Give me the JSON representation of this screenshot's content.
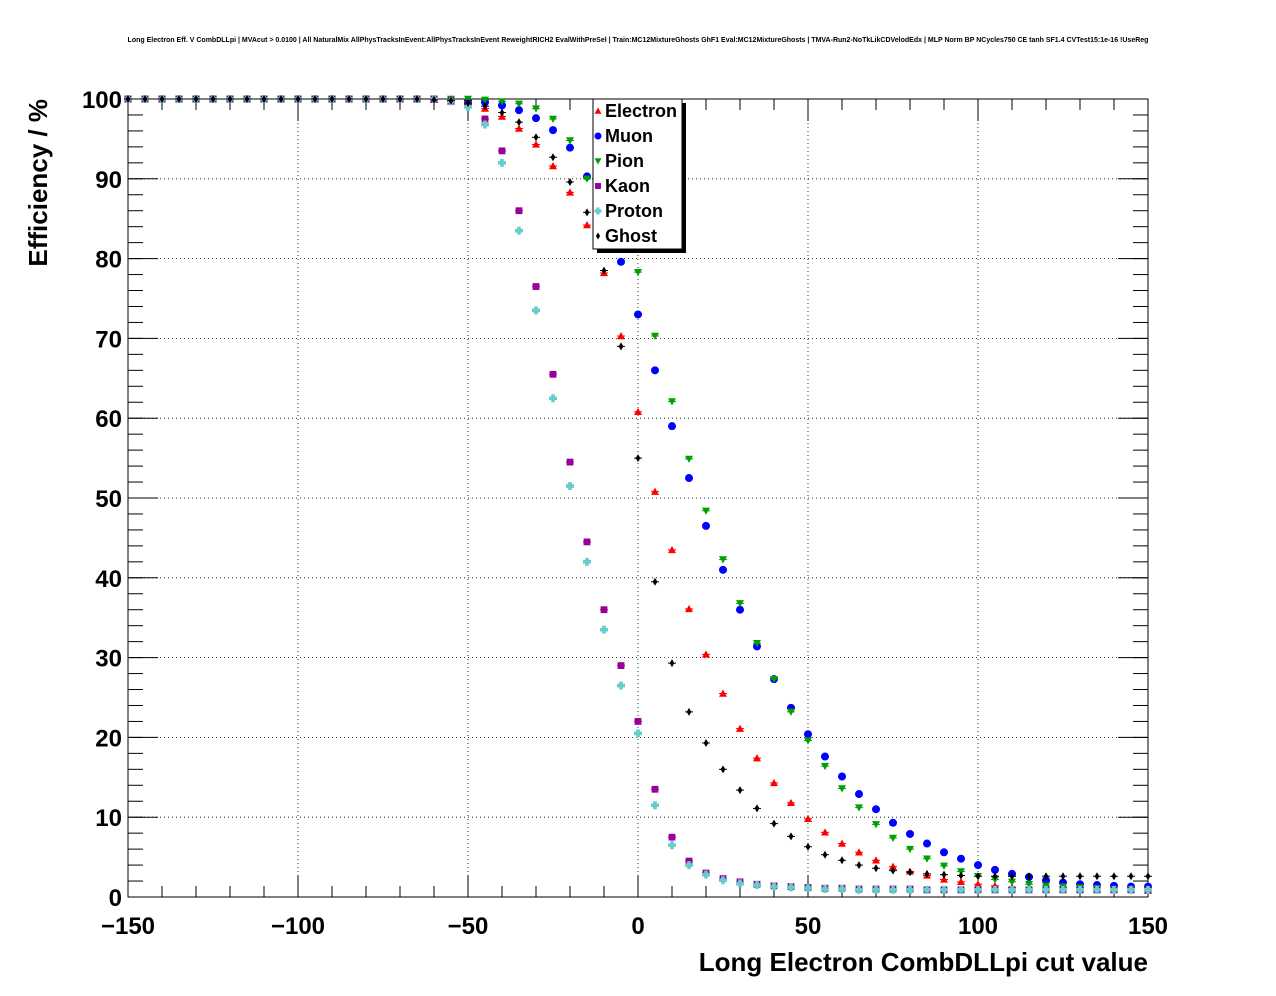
{
  "chart_data": {
    "type": "scatter",
    "title": "Long Electron Eff. V CombDLLpi | MVAcut > 0.0100 | All NaturalMix AllPhysTracksInEvent:AllPhysTracksInEvent ReweightRICH2 EvalWithPreSel | Train:MC12MixtureGhosts GhF1 Eval:MC12MixtureGhosts | TMVA-Run2-NoTkLikCDVelodEdx | MLP Norm BP NCycles750 CE tanh SF1.4 CVTest15:1e-16 !UseReg",
    "xlabel": "Long Electron CombDLLpi cut value",
    "ylabel": "Efficiency / %",
    "xlim": [
      -150,
      150
    ],
    "ylim": [
      0,
      100
    ],
    "x_ticks": [
      "−150",
      "−100",
      "−50",
      "0",
      "50",
      "100",
      "150"
    ],
    "y_ticks": [
      "0",
      "10",
      "20",
      "30",
      "40",
      "50",
      "60",
      "70",
      "80",
      "90",
      "100"
    ],
    "grid": true,
    "legend_position": "top-center",
    "x": [
      -150,
      -145,
      -140,
      -135,
      -130,
      -125,
      -120,
      -115,
      -110,
      -105,
      -100,
      -95,
      -90,
      -85,
      -80,
      -75,
      -70,
      -65,
      -60,
      -55,
      -50,
      -45,
      -40,
      -35,
      -30,
      -25,
      -20,
      -15,
      -10,
      -5,
      0,
      5,
      10,
      15,
      20,
      25,
      30,
      35,
      40,
      45,
      50,
      55,
      60,
      65,
      70,
      75,
      80,
      85,
      90,
      95,
      100,
      105,
      110,
      115,
      120,
      125,
      130,
      135,
      140,
      145,
      150
    ],
    "series": [
      {
        "name": "Electron",
        "color": "#ff0000",
        "marker": "triangle-up",
        "values": [
          100,
          100,
          100,
          100,
          100,
          100,
          100,
          100,
          100,
          100,
          100,
          100,
          100,
          100,
          100,
          100,
          100,
          100,
          99.9,
          99.7,
          99.4,
          98.8,
          97.8,
          96.3,
          94.3,
          91.6,
          88.3,
          84.2,
          78.2,
          70.3,
          60.8,
          50.8,
          43.5,
          36.1,
          30.4,
          25.5,
          21.1,
          17.4,
          14.3,
          11.8,
          9.8,
          8.1,
          6.7,
          5.6,
          4.6,
          3.8,
          3.2,
          2.7,
          2.2,
          1.9,
          1.6,
          1.4,
          1.2,
          1.1,
          1.0,
          1.0,
          0.9,
          0.9,
          0.9,
          0.9,
          0.8
        ]
      },
      {
        "name": "Muon",
        "color": "#0000ff",
        "marker": "circle",
        "values": [
          100,
          100,
          100,
          100,
          100,
          100,
          100,
          100,
          100,
          100,
          100,
          100,
          100,
          100,
          100,
          100,
          100,
          100,
          100,
          99.9,
          99.8,
          99.6,
          99.2,
          98.6,
          97.6,
          96.1,
          93.9,
          90.3,
          85.5,
          79.6,
          73.0,
          66.0,
          59.0,
          52.5,
          46.5,
          41.0,
          36.0,
          31.4,
          27.3,
          23.7,
          20.4,
          17.6,
          15.1,
          12.9,
          11.0,
          9.3,
          7.9,
          6.7,
          5.6,
          4.8,
          4.0,
          3.4,
          2.9,
          2.5,
          2.1,
          1.8,
          1.6,
          1.5,
          1.4,
          1.3,
          1.3
        ]
      },
      {
        "name": "Pion",
        "color": "#00a000",
        "marker": "triangle-down",
        "values": [
          100,
          100,
          100,
          100,
          100,
          100,
          100,
          100,
          100,
          100,
          100,
          100,
          100,
          100,
          100,
          100,
          100,
          100,
          100,
          100,
          100,
          99.9,
          99.7,
          99.4,
          98.8,
          97.5,
          94.8,
          90.0,
          82.9,
          83.7,
          78.3,
          70.3,
          62.1,
          54.9,
          48.4,
          42.3,
          36.8,
          31.8,
          27.3,
          23.2,
          19.6,
          16.4,
          13.6,
          11.2,
          9.1,
          7.4,
          6.0,
          4.8,
          3.9,
          3.2,
          2.6,
          2.2,
          1.9,
          1.6,
          1.4,
          1.3,
          1.2,
          1.1,
          1.0,
          1.0,
          0.9
        ]
      },
      {
        "name": "Kaon",
        "color": "#990099",
        "marker": "square",
        "values": [
          100,
          100,
          100,
          100,
          100,
          100,
          100,
          100,
          100,
          100,
          100,
          100,
          100,
          100,
          100,
          100,
          100,
          100,
          100,
          99.8,
          99.3,
          97.5,
          93.5,
          86.0,
          76.5,
          65.5,
          54.5,
          44.5,
          36.0,
          29.0,
          22.0,
          13.5,
          7.5,
          4.5,
          3.0,
          2.3,
          1.9,
          1.6,
          1.4,
          1.3,
          1.2,
          1.1,
          1.1,
          1.0,
          1.0,
          1.0,
          1.0,
          0.9,
          0.9,
          0.9,
          0.9,
          0.9,
          0.9,
          0.9,
          0.9,
          0.9,
          0.9,
          0.9,
          0.9,
          0.9,
          0.9
        ]
      },
      {
        "name": "Proton",
        "color": "#66cccc",
        "marker": "cross",
        "values": [
          100,
          100,
          100,
          100,
          100,
          100,
          100,
          100,
          100,
          100,
          100,
          100,
          100,
          100,
          100,
          100,
          100,
          100,
          100,
          99.7,
          99.0,
          96.8,
          92.0,
          83.5,
          73.5,
          62.5,
          51.5,
          42.0,
          33.5,
          26.5,
          20.5,
          11.5,
          6.5,
          4.0,
          2.8,
          2.1,
          1.7,
          1.5,
          1.3,
          1.2,
          1.1,
          1.0,
          1.0,
          0.9,
          0.9,
          0.9,
          0.9,
          0.9,
          0.9,
          0.9,
          0.9,
          0.9,
          0.9,
          0.9,
          0.9,
          0.9,
          0.9,
          0.9,
          0.9,
          0.9,
          0.9
        ]
      },
      {
        "name": "Ghost",
        "color": "#000000",
        "marker": "diamond",
        "values": [
          100,
          100,
          100,
          100,
          100,
          100,
          100,
          100,
          100,
          100,
          100,
          100,
          100,
          100,
          100,
          100,
          100,
          100,
          99.9,
          99.8,
          99.5,
          99.1,
          98.3,
          97.1,
          95.2,
          92.7,
          89.6,
          85.8,
          78.5,
          69.0,
          55.0,
          39.5,
          29.3,
          23.2,
          19.3,
          16.0,
          13.4,
          11.1,
          9.2,
          7.6,
          6.3,
          5.3,
          4.6,
          4.0,
          3.6,
          3.3,
          3.1,
          2.9,
          2.8,
          2.7,
          2.6,
          2.6,
          2.6,
          2.6,
          2.6,
          2.6,
          2.6,
          2.6,
          2.6,
          2.6,
          2.6
        ]
      }
    ]
  }
}
